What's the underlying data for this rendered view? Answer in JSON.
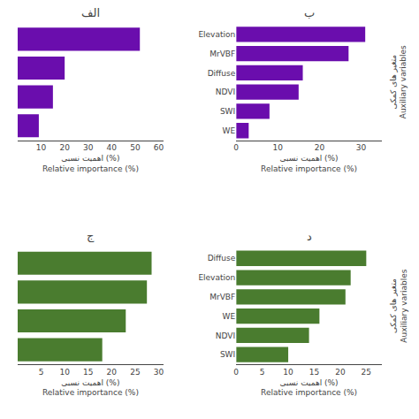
{
  "chart_data": [
    {
      "type": "bar",
      "orientation": "horizontal",
      "title": "الف",
      "categories": [
        null,
        null,
        null,
        null
      ],
      "values": [
        52,
        20,
        15,
        9
      ],
      "color": "#6a0dad",
      "xlim": [
        0,
        62
      ],
      "xticks": [
        10,
        20,
        30,
        40,
        50,
        60
      ],
      "xlabel": "اهمیت نسبی (%)\nRelative importance (%)",
      "grid": false
    },
    {
      "type": "bar",
      "orientation": "horizontal",
      "title": "ب",
      "categories": [
        "Elevation",
        "MrVBF",
        "Diffuse",
        "NDVI",
        "SWI",
        "WE"
      ],
      "values": [
        31,
        27,
        16,
        15,
        8,
        3
      ],
      "color": "#6a0dad",
      "xlim": [
        0,
        35
      ],
      "xticks": [
        0,
        10,
        20,
        30
      ],
      "xlabel": "اهمیت نسبی (%)\nRelative importance (%)",
      "ylabel": "متغیر های کمکی\nAuxiliary variables",
      "grid": false
    },
    {
      "type": "bar",
      "orientation": "horizontal",
      "title": "ج",
      "categories": [
        null,
        null,
        null,
        null
      ],
      "values": [
        28.5,
        27.5,
        23,
        18
      ],
      "color": "#4a7c2f",
      "xlim": [
        0,
        31
      ],
      "xticks": [
        5,
        10,
        15,
        20,
        25,
        30
      ],
      "xlabel": "اهمیت نسبی (%)\nRelative importance (%)",
      "grid": false
    },
    {
      "type": "bar",
      "orientation": "horizontal",
      "title": "د",
      "categories": [
        "Diffuse",
        "Elevation",
        "MrVBF",
        "WE",
        "NDVI",
        "SWI"
      ],
      "values": [
        25,
        22,
        21,
        16,
        14,
        10
      ],
      "color": "#4a7c2f",
      "xlim": [
        0,
        28
      ],
      "xticks": [
        0,
        5,
        10,
        15,
        20,
        25
      ],
      "xlabel": "اهمیت نسبی (%)\nRelative importance (%)",
      "ylabel": "متغیر های کمکی\nAuxiliary variables",
      "grid": false
    }
  ]
}
